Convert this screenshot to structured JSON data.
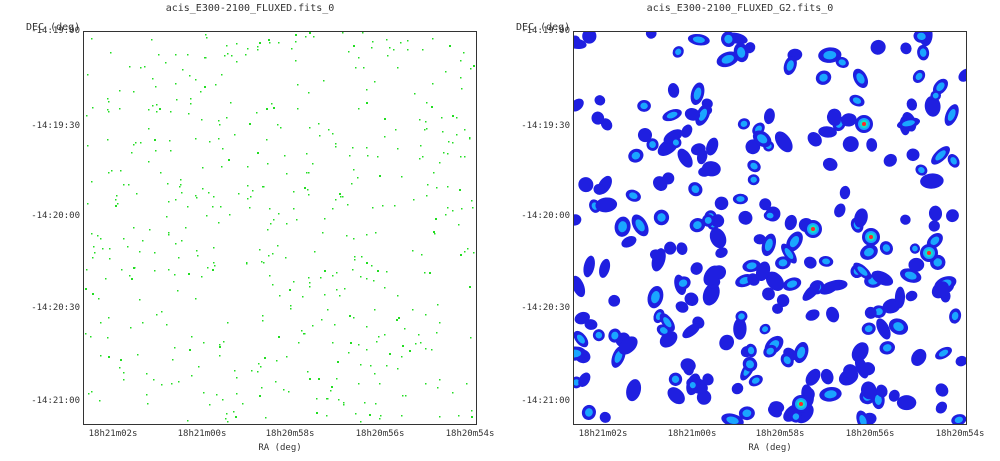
{
  "panels": [
    {
      "title": "acis_E300-2100_FLUXED.fits_0",
      "y_axis_label": "DEC (deg)",
      "x_axis_label": "RA (deg)",
      "y_ticks": [
        "-14:19:00",
        "-14:19:30",
        "-14:20:00",
        "-14:20:30",
        "-14:21:00"
      ],
      "x_ticks": [
        "18h21m02s",
        "18h21m00s",
        "18h20m58s",
        "18h20m56s",
        "18h20m54s"
      ],
      "style": "sparse-green-events"
    },
    {
      "title": "acis_E300-2100_FLUXED_G2.fits_0",
      "y_axis_label": "DEC (deg)",
      "x_axis_label": "RA (deg)",
      "y_ticks": [
        "-14:19:00",
        "-14:19:30",
        "-14:20:00",
        "-14:20:30",
        "-14:21:00"
      ],
      "x_ticks": [
        "18h21m02s",
        "18h21m00s",
        "18h20m58s",
        "18h20m56s",
        "18h20m54s"
      ],
      "style": "smoothed-blue-blobs"
    }
  ],
  "colors": {
    "event": "#22dd22",
    "blob_outer": "#1f1fe0",
    "blob_mid": "#1aa6ff",
    "blob_inner": "#12e0c8",
    "blob_core": "#ff2a2a",
    "axis": "#333333"
  }
}
